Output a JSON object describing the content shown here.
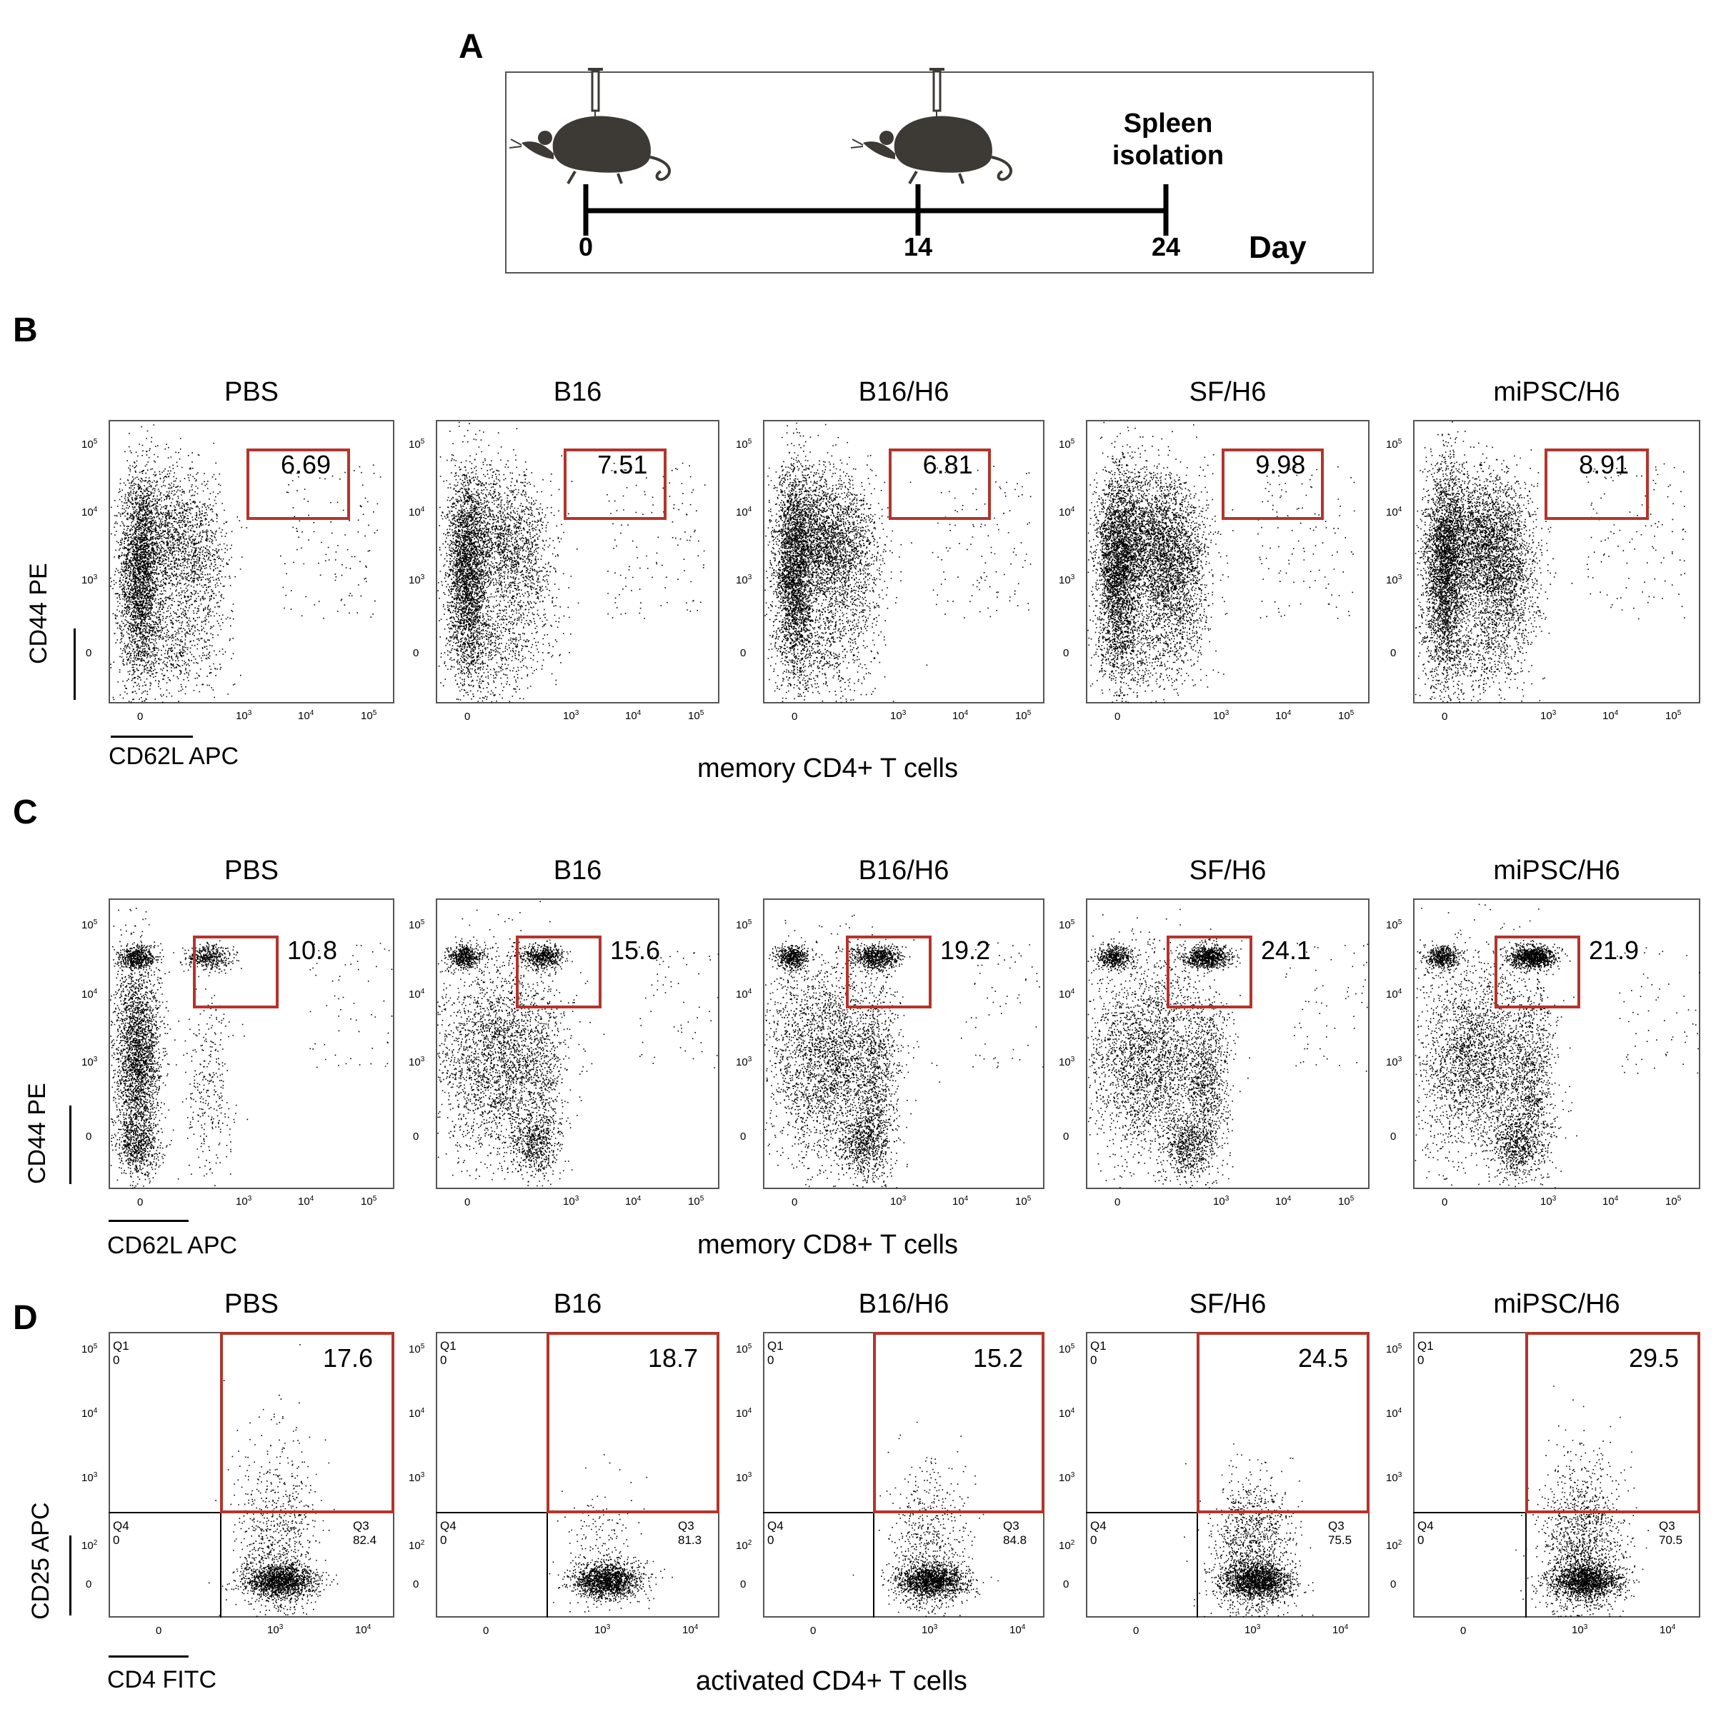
{
  "panel_a": {
    "label": "A",
    "timeline_days": [
      "0",
      "14",
      "24"
    ],
    "day_label": "Day",
    "end_label_line1": "Spleen",
    "end_label_line2": "isolation",
    "icons": [
      "mouse-injection-icon",
      "mouse-injection-icon"
    ]
  },
  "panel_b": {
    "label": "B",
    "caption": "memory CD4+ T cells",
    "x_axis": "CD62L APC",
    "y_axis": "CD44 PE"
  },
  "panel_c": {
    "label": "C",
    "caption": "memory CD8+ T cells",
    "x_axis": "CD62L APC",
    "y_axis": "CD44 PE"
  },
  "panel_d": {
    "label": "D",
    "caption": "activated CD4+ T cells",
    "x_axis": "CD4 FITC",
    "y_axis": "CD25 APC",
    "q1_label": "Q1",
    "q4_label": "Q4",
    "q3_label": "Q3",
    "zero_label": "0"
  },
  "ticks": {
    "zero": "0",
    "base": "10",
    "exps": [
      "2",
      "3",
      "4",
      "5"
    ]
  },
  "chart_data": [
    {
      "type": "scatter",
      "title": "memory CD4+ T cells",
      "xlabel": "CD62L APC",
      "ylabel": "CD44 PE",
      "x_ticks": [
        "0",
        "10^3",
        "10^4",
        "10^5"
      ],
      "y_ticks": [
        "0",
        "10^3",
        "10^4",
        "10^5"
      ],
      "groups": [
        "PBS",
        "B16",
        "B16/H6",
        "SF/H6",
        "miPSC/H6"
      ],
      "gate_percent": [
        "6.69",
        "7.51",
        "6.81",
        "9.98",
        "8.91"
      ]
    },
    {
      "type": "scatter",
      "title": "memory CD8+ T cells",
      "xlabel": "CD62L APC",
      "ylabel": "CD44 PE",
      "x_ticks": [
        "0",
        "10^3",
        "10^4",
        "10^5"
      ],
      "y_ticks": [
        "0",
        "10^3",
        "10^4",
        "10^5"
      ],
      "groups": [
        "PBS",
        "B16",
        "B16/H6",
        "SF/H6",
        "miPSC/H6"
      ],
      "gate_percent": [
        "10.8",
        "15.6",
        "19.2",
        "24.1",
        "21.9"
      ]
    },
    {
      "type": "scatter",
      "title": "activated CD4+ T cells",
      "xlabel": "CD4 FITC",
      "ylabel": "CD25 APC",
      "x_ticks": [
        "0",
        "10^3",
        "10^4"
      ],
      "y_ticks": [
        "0",
        "10^2",
        "10^3",
        "10^4",
        "10^5"
      ],
      "groups": [
        "PBS",
        "B16",
        "B16/H6",
        "SF/H6",
        "miPSC/H6"
      ],
      "gate_percent": [
        "17.6",
        "18.7",
        "15.2",
        "24.5",
        "29.5"
      ],
      "q1_percent": [
        "0",
        "0",
        "0",
        "0",
        "0"
      ],
      "q3_percent": [
        "82.4",
        "81.3",
        "84.8",
        "75.5",
        "70.5"
      ],
      "q4_percent": [
        "0",
        "0",
        "0",
        "0",
        "0"
      ]
    }
  ]
}
